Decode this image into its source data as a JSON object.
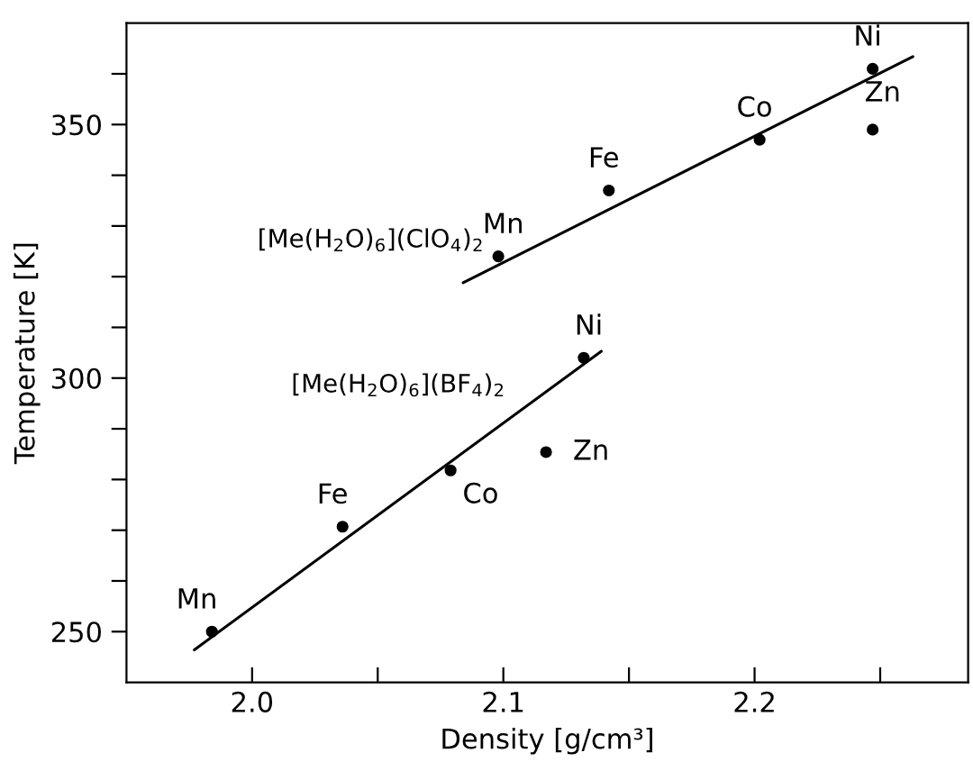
{
  "chart_data": {
    "type": "scatter",
    "xlabel": "Density [g/cm³]",
    "ylabel": "Temperature [K]",
    "xlim": [
      1.95,
      2.285
    ],
    "ylim": [
      240,
      370
    ],
    "xticks": [
      {
        "value": 2.0,
        "label": "2.0"
      },
      {
        "value": 2.05,
        "label": null
      },
      {
        "value": 2.1,
        "label": "2.1"
      },
      {
        "value": 2.15,
        "label": null
      },
      {
        "value": 2.2,
        "label": "2.2"
      },
      {
        "value": 2.25,
        "label": null
      }
    ],
    "yticks": [
      {
        "value": 250,
        "label": "250"
      },
      {
        "value": 260,
        "label": null
      },
      {
        "value": 270,
        "label": null
      },
      {
        "value": 280,
        "label": null
      },
      {
        "value": 290,
        "label": null
      },
      {
        "value": 300,
        "label": "300"
      },
      {
        "value": 310,
        "label": null
      },
      {
        "value": 320,
        "label": null
      },
      {
        "value": 330,
        "label": null
      },
      {
        "value": 340,
        "label": null
      },
      {
        "value": 350,
        "label": "350"
      },
      {
        "value": 360,
        "label": null
      }
    ],
    "grid": false,
    "legend": false,
    "series": [
      {
        "name": "[Me(H$_{2}$O)$_{6}$](ClO$_{4}$)$_{2}$",
        "marker": "circle",
        "color": "#000000",
        "x": [
          2.098,
          2.142,
          2.202,
          2.247,
          2.247
        ],
        "values": [
          324,
          337,
          347,
          361,
          349
        ]
      },
      {
        "type": "line",
        "marker": "none",
        "color": "#000000",
        "x": [
          2.084,
          2.263
        ],
        "values": [
          318.8,
          363.4
        ]
      },
      {
        "name": "[Me(H$_{2}$O)$_{6}$](BF$_{4}$)$_{2}$",
        "marker": "circle",
        "color": "#000000",
        "x": [
          1.984,
          2.036,
          2.079,
          2.117,
          2.132
        ],
        "values": [
          250,
          270.7,
          281.8,
          285.4,
          304
        ]
      },
      {
        "type": "line",
        "marker": "none",
        "color": "#000000",
        "x": [
          1.977,
          2.139
        ],
        "values": [
          246.4,
          305.3
        ]
      }
    ],
    "annotations": [
      {
        "text": "Mn",
        "x": 2.098,
        "y": 324
      },
      {
        "text": "Fe",
        "x": 2.142,
        "y": 337
      },
      {
        "text": "Co",
        "x": 2.202,
        "y": 347
      },
      {
        "text": "Ni",
        "x": 2.247,
        "y": 361
      },
      {
        "text": "Zn",
        "x": 2.247,
        "y": 349
      },
      {
        "text": "Mn",
        "x": 1.984,
        "y": 250
      },
      {
        "text": "Fe",
        "x": 2.036,
        "y": 270.7
      },
      {
        "text": "Co",
        "x": 2.079,
        "y": 281.8
      },
      {
        "text": "Zn",
        "x": 2.117,
        "y": 285.4
      },
      {
        "text": "Ni",
        "x": 2.132,
        "y": 304
      }
    ]
  }
}
